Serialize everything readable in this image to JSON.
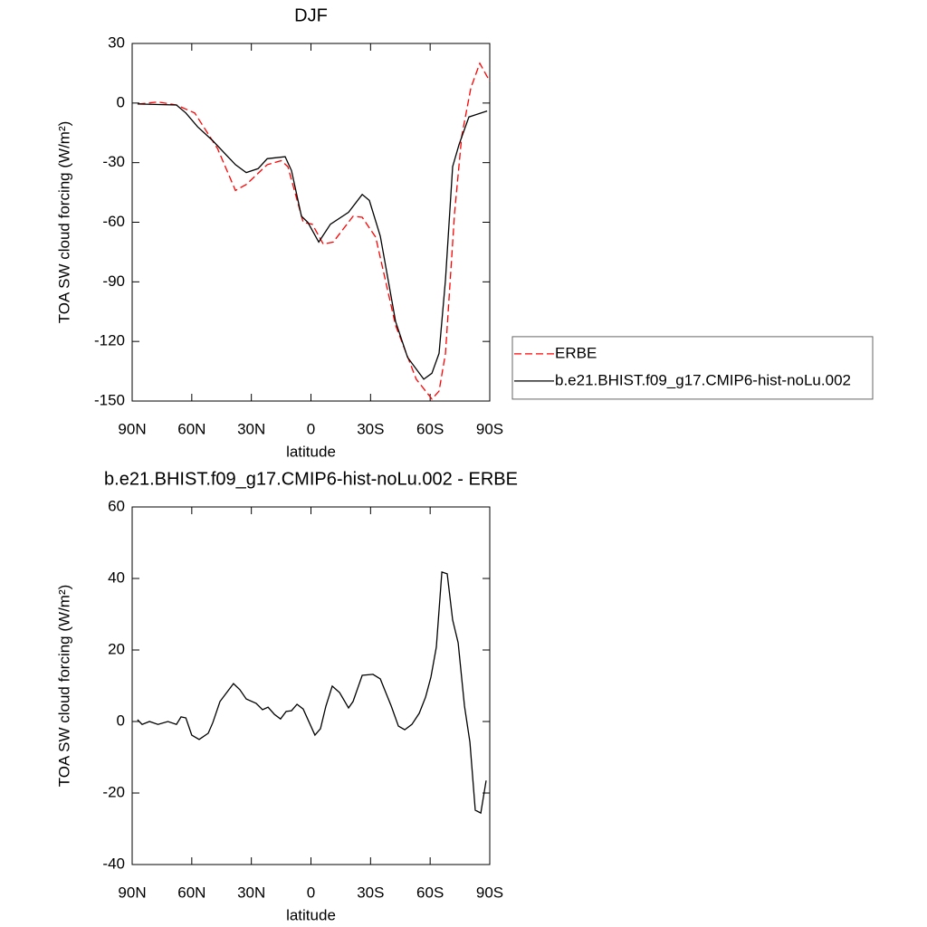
{
  "chart_data": [
    {
      "type": "line",
      "title": "DJF",
      "x_label": "latitude",
      "y_label": "TOA SW cloud forcing (W/m²)",
      "xlim": [
        90,
        -90
      ],
      "ylim": [
        -150,
        30
      ],
      "xticks": [
        {
          "value": 90,
          "label": "90N"
        },
        {
          "value": 60,
          "label": "60N"
        },
        {
          "value": 30,
          "label": "30N"
        },
        0,
        {
          "value": -30,
          "label": "30S"
        },
        {
          "value": -60,
          "label": "60S"
        },
        {
          "value": -90,
          "label": "90S"
        }
      ],
      "yticks": [
        30,
        0,
        -30,
        -60,
        -90,
        -120,
        -150
      ],
      "legend_position": "right",
      "series": [
        {
          "name": "ERBE",
          "color": "#ff0000",
          "dash": true,
          "x": [
            87,
            77,
            67.7,
            58.5,
            47,
            38,
            32.6,
            22,
            15,
            11.6,
            3.9,
            -0.7,
            -6.2,
            -11.2,
            -21.2,
            -25.8,
            -32.6,
            -42.6,
            -53,
            -60.9,
            -64.5,
            -67.7,
            -72.3,
            -75.9,
            -80.5,
            -85,
            -90
          ],
          "values": [
            -0.5,
            0.5,
            -1,
            -5,
            -23,
            -44,
            -41,
            -31,
            -29,
            -32,
            -60,
            -61,
            -71,
            -70,
            -57,
            -57.5,
            -67.5,
            -112,
            -139,
            -149,
            -145,
            -126,
            -55,
            -16.5,
            7.7,
            20,
            10.9
          ]
        },
        {
          "name": "b.e21.BHIST.f09_g17.CMIP6-hist-noLu.002",
          "color": "#000000",
          "dash": false,
          "x": [
            87.3,
            67.7,
            63,
            57,
            49.4,
            38,
            32.6,
            26.6,
            22,
            13,
            9.8,
            4.8,
            1.6,
            -3.9,
            -9.8,
            -18.9,
            -25.8,
            -29.4,
            -34.9,
            -42.6,
            -48.6,
            -56.8,
            -60.9,
            -64.5,
            -67.7,
            -71.3,
            -74.5,
            -79.5,
            -88.7
          ],
          "values": [
            -0.5,
            -1,
            -5,
            -12,
            -19,
            -31,
            -35,
            -33,
            -28,
            -27,
            -34,
            -57,
            -60,
            -70,
            -61,
            -55,
            -46,
            -49,
            -67,
            -110,
            -128,
            -139,
            -136,
            -126,
            -89,
            -32,
            -21,
            -7,
            -4
          ]
        }
      ]
    },
    {
      "type": "line",
      "title": "b.e21.BHIST.f09_g17.CMIP6-hist-noLu.002 - ERBE",
      "x_label": "latitude",
      "y_label": "TOA SW cloud forcing (W/m²)",
      "xlim": [
        90,
        -90
      ],
      "ylim": [
        -40,
        60
      ],
      "xticks": [
        {
          "value": 90,
          "label": "90N"
        },
        {
          "value": 60,
          "label": "60N"
        },
        {
          "value": 30,
          "label": "30N"
        },
        0,
        {
          "value": -30,
          "label": "30S"
        },
        {
          "value": -60,
          "label": "60S"
        },
        {
          "value": -90,
          "label": "90S"
        }
      ],
      "yticks": [
        60,
        40,
        20,
        0,
        -20,
        -40
      ],
      "series": [
        {
          "color": "#000000",
          "dash": false,
          "x": [
            87.3,
            85,
            81.3,
            77,
            72,
            67.7,
            65.4,
            63,
            60,
            56.3,
            51.7,
            49.4,
            45.8,
            39,
            35.8,
            32.6,
            27.6,
            24.4,
            21.6,
            18.4,
            15.3,
            12.5,
            9.8,
            7,
            3.9,
            -2,
            -4.8,
            -7.5,
            -10.7,
            -14.4,
            -18.9,
            -21.2,
            -25.8,
            -31.2,
            -34.9,
            -40.4,
            -44,
            -47.2,
            -50.8,
            -54.5,
            -57.7,
            -60.4,
            -63.1,
            -65.9,
            -68.6,
            -71.3,
            -74.1,
            -77.3,
            -80,
            -82.7,
            -85.5,
            -88.2
          ],
          "values": [
            0.5,
            -0.8,
            0,
            -0.8,
            0,
            -0.8,
            1.3,
            1,
            -3.8,
            -5,
            -3.3,
            -0.3,
            5.6,
            10.6,
            8.9,
            6.3,
            5.1,
            3.3,
            4,
            2,
            0.7,
            2.8,
            3,
            4.8,
            3.5,
            -3.8,
            -2,
            4.3,
            9.9,
            8.1,
            3.8,
            5.6,
            12.9,
            13.2,
            11.9,
            4.3,
            -1.3,
            -2.3,
            -0.8,
            2.3,
            6.8,
            12.4,
            20.8,
            41.8,
            41.3,
            28.4,
            22,
            4.3,
            -5.8,
            -24.8,
            -25.6,
            -16.5
          ]
        }
      ]
    }
  ]
}
